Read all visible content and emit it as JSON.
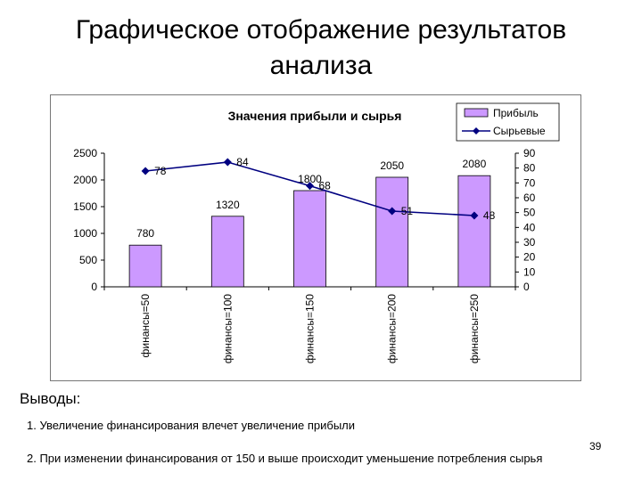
{
  "slide": {
    "title_line1": "Графическое отображение результатов",
    "title_line2": "анализа",
    "number": "39"
  },
  "conclusions": {
    "heading": "Выводы:",
    "items": [
      "1. Увеличение финансирования влечет увеличение прибыли",
      "2. При изменении финансирования от 150 и выше происходит  уменьшение потребления сырья"
    ]
  },
  "chart_data": {
    "type": "bar",
    "title": "Значения прибыли и сырья",
    "categories": [
      "финансы=50",
      "финансы=100",
      "финансы=150",
      "финансы=200",
      "финансы=250"
    ],
    "series": [
      {
        "name": "Прибыль",
        "type": "bar",
        "axis": "left",
        "values": [
          780,
          1320,
          1800,
          2050,
          2080
        ],
        "color": "#cc99ff"
      },
      {
        "name": "Сырьевые",
        "type": "line",
        "axis": "right",
        "values": [
          78,
          84,
          68,
          51,
          48
        ],
        "color": "#000080"
      }
    ],
    "y_left": {
      "min": 0,
      "max": 2500,
      "ticks": [
        "0",
        "500",
        "1000",
        "1500",
        "2000",
        "2500"
      ]
    },
    "y_right": {
      "min": 0,
      "max": 90,
      "ticks": [
        "0",
        "10",
        "20",
        "30",
        "40",
        "50",
        "60",
        "70",
        "80",
        "90"
      ]
    },
    "legend_position": "top-right",
    "grid": false
  }
}
